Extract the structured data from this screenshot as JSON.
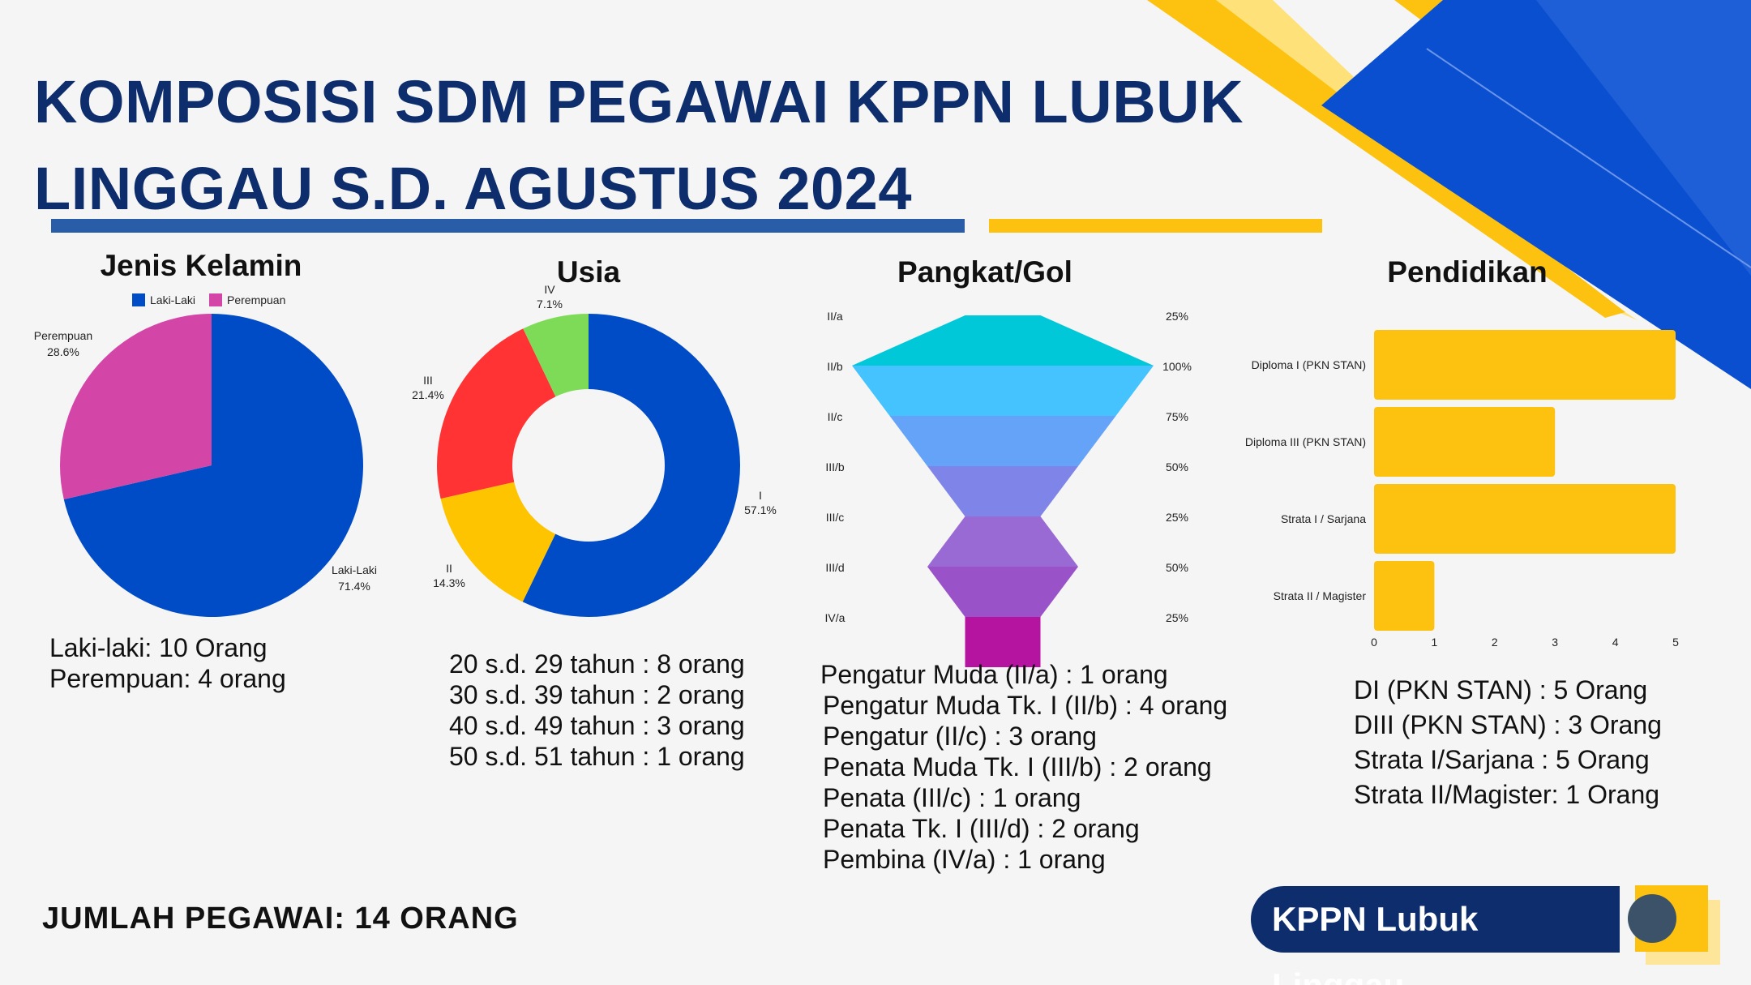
{
  "title": "KOMPOSISI SDM PEGAWAI KPPN LUBUK LINGGAU S.D. AGUSTUS 2024",
  "sections": {
    "gender": "Jenis Kelamin",
    "age": "Usia",
    "rank": "Pangkat/Gol",
    "education": "Pendidikan"
  },
  "gender_stats": [
    "Laki-laki: 10 Orang",
    "Perempuan: 4 orang"
  ],
  "age_stats": [
    "20 s.d. 29 tahun : 8 orang",
    "30 s.d. 39 tahun : 2 orang",
    "40 s.d. 49 tahun : 3 orang",
    "50 s.d. 51 tahun : 1 orang"
  ],
  "rank_stats": [
    "Pengatur Muda (II/a) : 1 orang",
    "Pengatur Muda Tk. I (II/b) : 4 orang",
    "Pengatur  (II/c) : 3 orang",
    "Penata Muda Tk. I (III/b) : 2 orang",
    "Penata  (III/c) : 1 orang",
    "Penata Tk. I (III/d) : 2 orang",
    "Pembina (IV/a) : 1 orang"
  ],
  "education_stats": [
    "DI (PKN STAN) : 5 Orang",
    "DIII (PKN STAN) : 3 Orang",
    "Strata I/Sarjana : 5 Orang",
    "Strata II/Magister: 1 Orang"
  ],
  "total": "JUMLAH PEGAWAI: 14 ORANG",
  "badge": "KPPN Lubuk Linggau",
  "colors": {
    "navy": "#0d2d6c",
    "accent_blue": "#0b4fd1",
    "accent_yellow": "#fcc20f"
  },
  "chart_data": [
    {
      "type": "pie",
      "legend": [
        "Laki-Laki",
        "Perempuan"
      ],
      "legend_position": "top",
      "slices": [
        {
          "label": "Laki-Laki",
          "pct": "71.4%",
          "value": 71.4,
          "color": "#004cc7"
        },
        {
          "label": "Perempuan",
          "pct": "28.6%",
          "value": 28.6,
          "color": "#d445a8"
        }
      ]
    },
    {
      "type": "pie",
      "variant": "donut",
      "slices": [
        {
          "label": "I",
          "pct": "57.1%",
          "value": 57.1,
          "color": "#004cc7"
        },
        {
          "label": "II",
          "pct": "14.3%",
          "value": 14.3,
          "color": "#ffc400"
        },
        {
          "label": "III",
          "pct": "21.4%",
          "value": 21.4,
          "color": "#ff3333"
        },
        {
          "label": "IV",
          "pct": "7.1%",
          "value": 7.1,
          "color": "#7edb57"
        }
      ]
    },
    {
      "type": "funnel",
      "categories": [
        "II/a",
        "II/b",
        "II/c",
        "III/b",
        "III/c",
        "III/d",
        "IV/a"
      ],
      "values": [
        1,
        4,
        3,
        2,
        1,
        2,
        1
      ],
      "percent_labels": [
        "25%",
        "100%",
        "75%",
        "50%",
        "25%",
        "50%",
        "25%"
      ],
      "colors": [
        "#00c8d8",
        "#45c3ff",
        "#64a3f7",
        "#7f84e8",
        "#9a6ad4",
        "#9a52c8",
        "#b514a0"
      ]
    },
    {
      "type": "bar",
      "orientation": "horizontal",
      "categories": [
        "Diploma I (PKN STAN)",
        "Diploma III (PKN STAN)",
        "Strata I / Sarjana",
        "Strata II / Magister"
      ],
      "values": [
        5,
        3,
        5,
        1
      ],
      "xlim": [
        0,
        5
      ],
      "xticks": [
        "0",
        "1",
        "2",
        "3",
        "4",
        "5"
      ],
      "color": "#fcc20f"
    }
  ]
}
